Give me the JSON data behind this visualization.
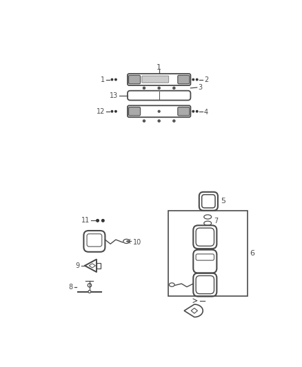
{
  "bg_color": "#ffffff",
  "line_color": "#4a4a4a",
  "fig_width": 4.38,
  "fig_height": 5.33,
  "dpi": 100
}
